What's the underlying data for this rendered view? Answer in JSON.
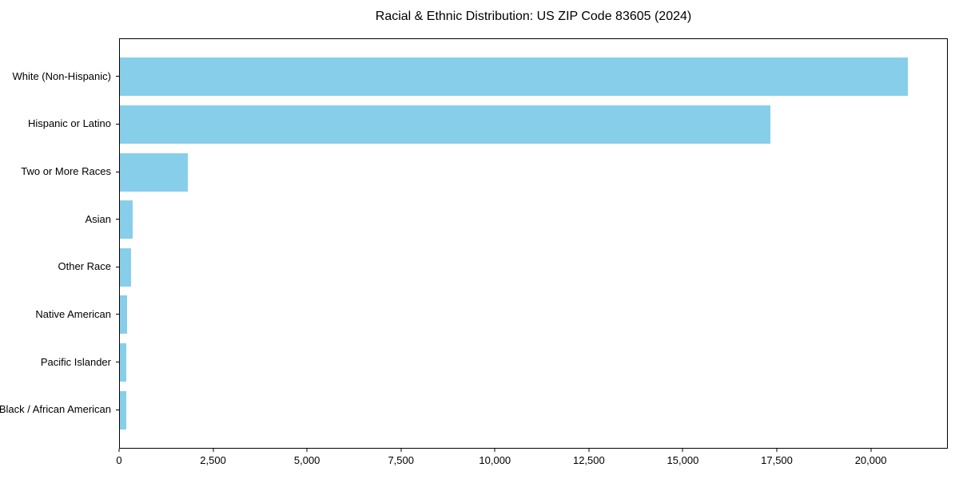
{
  "title": "Racial & Ethnic Distribution: US ZIP Code 83605 (2024)",
  "chart_data": {
    "type": "bar",
    "orientation": "horizontal",
    "title": "Racial & Ethnic Distribution: US ZIP Code 83605 (2024)",
    "xlabel": "",
    "ylabel": "",
    "categories": [
      "White (Non-Hispanic)",
      "Hispanic or Latino",
      "Two or More Races",
      "Asian",
      "Other Race",
      "Native American",
      "Pacific Islander",
      "Black / African American"
    ],
    "values": [
      21000,
      17350,
      1810,
      350,
      290,
      200,
      180,
      165
    ],
    "xlim": [
      0,
      22050
    ],
    "x_ticks": [
      0,
      2500,
      5000,
      7500,
      10000,
      12500,
      15000,
      17500,
      20000
    ],
    "x_tick_labels": [
      "0",
      "2,500",
      "5,000",
      "7,500",
      "10,000",
      "12,500",
      "15,000",
      "17,500",
      "20,000"
    ],
    "bar_color": "#87CEEB",
    "axis_color": "#000000",
    "background_color": "#ffffff",
    "grid": false,
    "legend": null
  }
}
